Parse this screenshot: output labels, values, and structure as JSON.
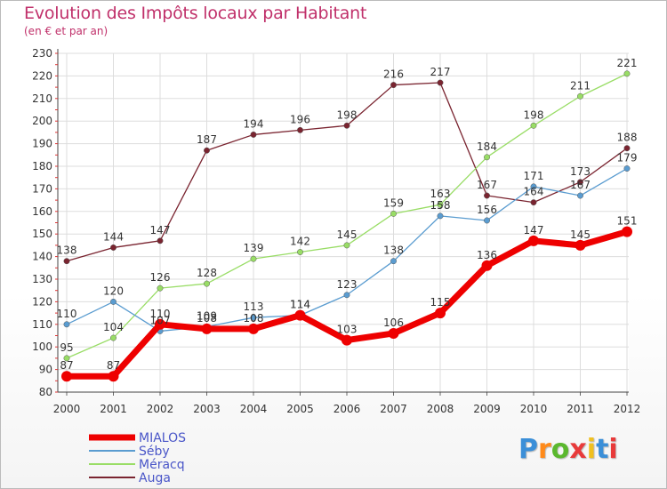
{
  "chart_data": {
    "type": "line",
    "title": "Evolution des Impôts locaux par Habitant",
    "subtitle": "(en € et par an)",
    "xlabel": "",
    "ylabel": "",
    "ylim": [
      80,
      230
    ],
    "yticks": [
      "80",
      "90",
      "100",
      "110",
      "120",
      "130",
      "140",
      "150",
      "160",
      "170",
      "180",
      "190",
      "200",
      "210",
      "220",
      "230"
    ],
    "categories": [
      "2000",
      "2001",
      "2002",
      "2003",
      "2004",
      "2005",
      "2006",
      "2007",
      "2008",
      "2009",
      "2010",
      "2011",
      "2012"
    ],
    "series": [
      {
        "name": "MIALOS",
        "color": "#ee0000",
        "values": [
          87,
          87,
          110,
          108,
          108,
          114,
          103,
          106,
          115,
          136,
          147,
          145,
          151
        ]
      },
      {
        "name": "Séby",
        "color": "#5a9cd0",
        "values": [
          110,
          120,
          107,
          109,
          113,
          114,
          123,
          138,
          158,
          156,
          171,
          167,
          179
        ]
      },
      {
        "name": "Méracq",
        "color": "#99dd66",
        "values": [
          95,
          104,
          126,
          128,
          139,
          142,
          145,
          159,
          163,
          184,
          198,
          211,
          221
        ]
      },
      {
        "name": "Auga",
        "color": "#7a2430",
        "values": [
          138,
          144,
          147,
          187,
          194,
          196,
          198,
          216,
          217,
          167,
          164,
          173,
          188
        ]
      }
    ],
    "legend_position": "bottom-left",
    "grid": true
  },
  "brand": {
    "letters": [
      "P",
      "r",
      "o",
      "x",
      "i",
      "t",
      "i"
    ],
    "colors": [
      "#3b8fd8",
      "#ff8a1a",
      "#5bb82e",
      "#e83a3a",
      "#f0c020",
      "#3b8fd8",
      "#e83a3a"
    ]
  }
}
